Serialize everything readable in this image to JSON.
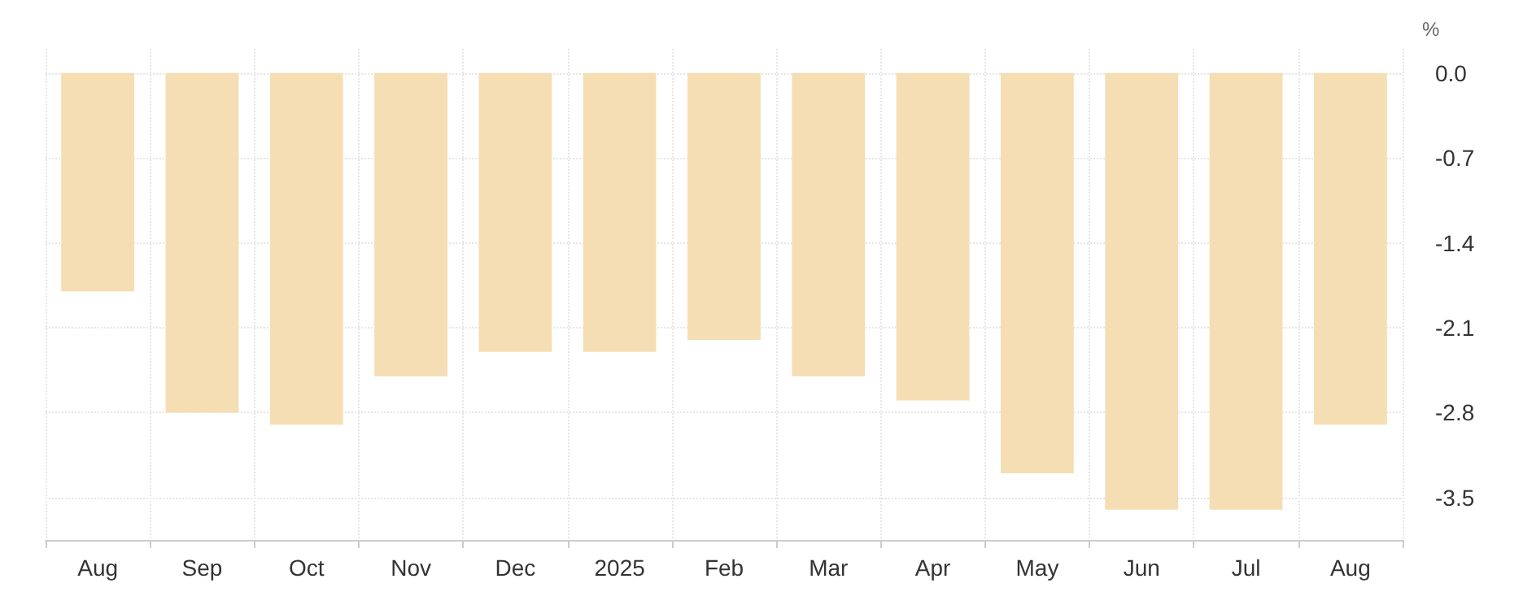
{
  "chart_data": {
    "type": "bar",
    "ylabel": "%",
    "categories": [
      "Aug",
      "Sep",
      "Oct",
      "Nov",
      "Dec",
      "2025",
      "Feb",
      "Mar",
      "Apr",
      "May",
      "Jun",
      "Jul",
      "Aug"
    ],
    "values": [
      -1.8,
      -2.8,
      -2.9,
      -2.5,
      -2.3,
      -2.3,
      -2.2,
      -2.5,
      -2.7,
      -3.3,
      -3.6,
      -3.6,
      -2.9
    ],
    "color": "#f5deb3",
    "ylim": [
      -3.85,
      0.2
    ],
    "yticks": [
      {
        "value": 0,
        "label": "0.0"
      },
      -0.7,
      -1.4,
      -2.1,
      -2.8,
      -3.5
    ],
    "grid": true
  }
}
